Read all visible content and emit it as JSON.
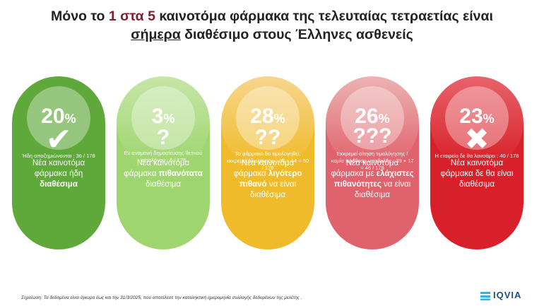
{
  "title": {
    "line1_pre": "Μόνο το ",
    "line1_hl1": "1",
    "line1_mid": " στα ",
    "line1_hl2": "5",
    "line1_post": " καινοτόμα φάρμακα της τελευταίας τετραετίας είναι",
    "line2_ul": "σήμερα",
    "line2_post": " διαθέσιμο στους Έλληνες ασθενείς"
  },
  "cards": [
    {
      "value": "20",
      "symbol": "%",
      "desc_pre": "Νέα καινοτόμα φάρμακα ήδη ",
      "desc_bold": "διαθέσιμα",
      "desc_post": "",
      "icon": "check-icon",
      "icon_text": "✔",
      "note": "Ήδη αποζημιώνονται : 36 / 178",
      "color_body": "#5fa83a",
      "color_top": "#5fa83a"
    },
    {
      "value": "3",
      "symbol": "%",
      "desc_pre": "Νέα καινοτόμα φάρμακα ",
      "desc_bold": "πιθανότατα",
      "desc_post": " διαθέσιμα",
      "icon": "question-icon",
      "icon_text": "?",
      "note": "Εν αναμονή δημοσίευσης θετικού καταλόγου : 6 / 178",
      "color_body": "#9fd56f",
      "color_top": "#c6e6a6"
    },
    {
      "value": "28",
      "symbol": "%",
      "desc_pre": "Νέα καινοτόμα φάρμακα ",
      "desc_bold": "λιγότερο πιθανό",
      "desc_post": " να είναι διαθέσιμα",
      "icon": "double-question-icon",
      "icon_text": "??",
      "note": "Το φάρμακο θα τιμολογηθεί, εκκρεμεί αξιολόγηση : 36 + 14 = 50 / 178",
      "color_body": "#f0bb2a",
      "color_top": "#f6d68d"
    },
    {
      "value": "26",
      "symbol": "%",
      "desc_pre": "Νέα καινοτόμα φάρμακα με ",
      "desc_bold": "ελάχιστες πιθανότητες",
      "desc_post": " να είναι διαθέσιμα",
      "icon": "triple-question-icon",
      "icon_text": "???",
      "note": "Εκκρεμεί αίτηση τιμολόγησης / καμία πρόθεση υποβολής : 29 + 17 = 46 / 178",
      "color_body": "#e0626d",
      "color_top": "#ecb3b0"
    },
    {
      "value": "23",
      "symbol": "%",
      "desc_pre": "Νέα καινοτόμα φάρμακα δε θα είναι διαθέσιμα",
      "desc_bold": "",
      "desc_post": "",
      "icon": "x-icon",
      "icon_text": "✖",
      "note": "Η εταιρεία δε θα λανσάρει : 40 / 178",
      "color_body": "#d8202a",
      "color_top": "#e8636a"
    }
  ],
  "footnote": "Σημείωση: Τα δεδομένα είναι έγκυρα έως και την 31/3/2025, που αποτέλεσε την καταληκτική ημερομηνία συλλογής δεδομένων της μελέτης .",
  "logo_text": "IQVIA"
}
